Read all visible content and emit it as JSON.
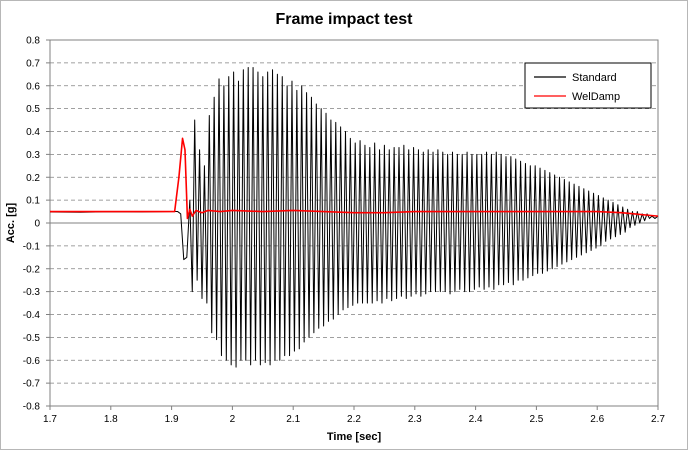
{
  "chart_data": {
    "type": "line",
    "title": "Frame impact test",
    "xlabel": "Time [sec]",
    "ylabel": "Acc. [g]",
    "xlim": [
      1.7,
      2.7
    ],
    "ylim": [
      -0.8,
      0.8
    ],
    "x_ticks": [
      "1.7",
      "1.8",
      "1.9",
      "2",
      "2.1",
      "2.2",
      "2.3",
      "2.4",
      "2.5",
      "2.6",
      "2.7"
    ],
    "y_ticks": [
      "0.8",
      "0.7",
      "0.6",
      "0.5",
      "0.4",
      "0.3",
      "0.2",
      "0.1",
      "0",
      "-0.1",
      "-0.2",
      "-0.3",
      "-0.4",
      "-0.5",
      "-0.6",
      "-0.7",
      "-0.8"
    ],
    "grid": "horizontal dashed",
    "legend_position": "top-right",
    "series": [
      {
        "name": "Standard",
        "color": "#000000",
        "points": [
          [
            1.7,
            0.048
          ],
          [
            1.75,
            0.047
          ],
          [
            1.8,
            0.049
          ],
          [
            1.85,
            0.048
          ],
          [
            1.9,
            0.05
          ],
          [
            1.91,
            0.05
          ],
          [
            1.915,
            0.04
          ],
          [
            1.92,
            -0.16
          ],
          [
            1.925,
            -0.15
          ],
          [
            1.93,
            0.1
          ],
          [
            1.934,
            -0.3
          ],
          [
            1.938,
            0.45
          ],
          [
            1.942,
            -0.25
          ],
          [
            1.946,
            0.32
          ],
          [
            1.95,
            -0.33
          ],
          [
            1.954,
            0.25
          ],
          [
            1.958,
            -0.35
          ],
          [
            1.962,
            0.47
          ],
          [
            1.966,
            -0.48
          ],
          [
            1.97,
            0.55
          ],
          [
            1.974,
            -0.51
          ],
          [
            1.978,
            0.63
          ],
          [
            1.982,
            -0.58
          ],
          [
            1.986,
            0.6
          ],
          [
            1.99,
            -0.6
          ],
          [
            1.994,
            0.64
          ],
          [
            1.998,
            -0.62
          ],
          [
            2.002,
            0.66
          ],
          [
            2.006,
            -0.63
          ],
          [
            2.01,
            0.62
          ],
          [
            2.014,
            -0.6
          ],
          [
            2.018,
            0.67
          ],
          [
            2.022,
            -0.6
          ],
          [
            2.026,
            0.68
          ],
          [
            2.03,
            -0.62
          ],
          [
            2.034,
            0.68
          ],
          [
            2.038,
            -0.6
          ],
          [
            2.042,
            0.66
          ],
          [
            2.046,
            -0.62
          ],
          [
            2.05,
            0.64
          ],
          [
            2.054,
            -0.61
          ],
          [
            2.058,
            0.66
          ],
          [
            2.062,
            -0.62
          ],
          [
            2.066,
            0.67
          ],
          [
            2.07,
            -0.6
          ],
          [
            2.074,
            0.65
          ],
          [
            2.078,
            -0.6
          ],
          [
            2.082,
            0.64
          ],
          [
            2.086,
            -0.58
          ],
          [
            2.09,
            0.6
          ],
          [
            2.094,
            -0.58
          ],
          [
            2.098,
            0.62
          ],
          [
            2.102,
            -0.56
          ],
          [
            2.106,
            0.58
          ],
          [
            2.11,
            -0.55
          ],
          [
            2.114,
            0.6
          ],
          [
            2.118,
            -0.52
          ],
          [
            2.122,
            0.57
          ],
          [
            2.126,
            -0.5
          ],
          [
            2.13,
            0.55
          ],
          [
            2.134,
            -0.48
          ],
          [
            2.138,
            0.52
          ],
          [
            2.142,
            -0.46
          ],
          [
            2.146,
            0.5
          ],
          [
            2.15,
            -0.45
          ],
          [
            2.154,
            0.48
          ],
          [
            2.158,
            -0.43
          ],
          [
            2.162,
            0.45
          ],
          [
            2.166,
            -0.42
          ],
          [
            2.17,
            0.44
          ],
          [
            2.174,
            -0.4
          ],
          [
            2.178,
            0.42
          ],
          [
            2.182,
            -0.38
          ],
          [
            2.186,
            0.4
          ],
          [
            2.19,
            -0.37
          ],
          [
            2.194,
            0.37
          ],
          [
            2.198,
            -0.36
          ],
          [
            2.202,
            0.35
          ],
          [
            2.206,
            -0.35
          ],
          [
            2.21,
            0.36
          ],
          [
            2.214,
            -0.35
          ],
          [
            2.218,
            0.34
          ],
          [
            2.222,
            -0.35
          ],
          [
            2.226,
            0.33
          ],
          [
            2.23,
            -0.35
          ],
          [
            2.234,
            0.35
          ],
          [
            2.238,
            -0.34
          ],
          [
            2.242,
            0.32
          ],
          [
            2.246,
            -0.35
          ],
          [
            2.25,
            0.34
          ],
          [
            2.254,
            -0.33
          ],
          [
            2.258,
            0.32
          ],
          [
            2.262,
            -0.34
          ],
          [
            2.266,
            0.33
          ],
          [
            2.27,
            -0.33
          ],
          [
            2.274,
            0.33
          ],
          [
            2.278,
            -0.32
          ],
          [
            2.282,
            0.34
          ],
          [
            2.286,
            -0.33
          ],
          [
            2.29,
            0.32
          ],
          [
            2.294,
            -0.32
          ],
          [
            2.298,
            0.33
          ],
          [
            2.302,
            -0.31
          ],
          [
            2.306,
            0.32
          ],
          [
            2.31,
            -0.32
          ],
          [
            2.314,
            0.31
          ],
          [
            2.318,
            -0.31
          ],
          [
            2.322,
            0.32
          ],
          [
            2.326,
            -0.3
          ],
          [
            2.33,
            0.31
          ],
          [
            2.334,
            -0.3
          ],
          [
            2.338,
            0.32
          ],
          [
            2.342,
            -0.3
          ],
          [
            2.346,
            0.31
          ],
          [
            2.35,
            -0.3
          ],
          [
            2.354,
            0.3
          ],
          [
            2.358,
            -0.31
          ],
          [
            2.362,
            0.31
          ],
          [
            2.366,
            -0.3
          ],
          [
            2.37,
            0.3
          ],
          [
            2.374,
            -0.29
          ],
          [
            2.378,
            0.3
          ],
          [
            2.382,
            -0.3
          ],
          [
            2.386,
            0.31
          ],
          [
            2.39,
            -0.3
          ],
          [
            2.394,
            0.3
          ],
          [
            2.398,
            -0.29
          ],
          [
            2.402,
            0.3
          ],
          [
            2.406,
            -0.28
          ],
          [
            2.41,
            0.3
          ],
          [
            2.414,
            -0.29
          ],
          [
            2.418,
            0.31
          ],
          [
            2.422,
            -0.28
          ],
          [
            2.426,
            0.3
          ],
          [
            2.43,
            -0.29
          ],
          [
            2.434,
            0.31
          ],
          [
            2.438,
            -0.27
          ],
          [
            2.442,
            0.3
          ],
          [
            2.446,
            -0.27
          ],
          [
            2.45,
            0.29
          ],
          [
            2.454,
            -0.26
          ],
          [
            2.458,
            0.29
          ],
          [
            2.462,
            -0.27
          ],
          [
            2.466,
            0.28
          ],
          [
            2.47,
            -0.25
          ],
          [
            2.474,
            0.27
          ],
          [
            2.478,
            -0.25
          ],
          [
            2.482,
            0.26
          ],
          [
            2.486,
            -0.24
          ],
          [
            2.49,
            0.25
          ],
          [
            2.494,
            -0.23
          ],
          [
            2.498,
            0.25
          ],
          [
            2.502,
            -0.22
          ],
          [
            2.506,
            0.24
          ],
          [
            2.51,
            -0.22
          ],
          [
            2.514,
            0.23
          ],
          [
            2.518,
            -0.21
          ],
          [
            2.522,
            0.22
          ],
          [
            2.526,
            -0.2
          ],
          [
            2.53,
            0.21
          ],
          [
            2.534,
            -0.19
          ],
          [
            2.538,
            0.2
          ],
          [
            2.542,
            -0.18
          ],
          [
            2.546,
            0.19
          ],
          [
            2.55,
            -0.17
          ],
          [
            2.554,
            0.18
          ],
          [
            2.558,
            -0.16
          ],
          [
            2.562,
            0.17
          ],
          [
            2.566,
            -0.15
          ],
          [
            2.57,
            0.16
          ],
          [
            2.574,
            -0.14
          ],
          [
            2.578,
            0.15
          ],
          [
            2.582,
            -0.13
          ],
          [
            2.586,
            0.14
          ],
          [
            2.59,
            -0.12
          ],
          [
            2.594,
            0.13
          ],
          [
            2.598,
            -0.11
          ],
          [
            2.602,
            0.12
          ],
          [
            2.606,
            -0.1
          ],
          [
            2.61,
            0.11
          ],
          [
            2.614,
            -0.08
          ],
          [
            2.618,
            0.1
          ],
          [
            2.622,
            -0.07
          ],
          [
            2.626,
            0.09
          ],
          [
            2.63,
            -0.06
          ],
          [
            2.634,
            0.08
          ],
          [
            2.638,
            -0.05
          ],
          [
            2.642,
            0.07
          ],
          [
            2.646,
            -0.04
          ],
          [
            2.65,
            0.06
          ],
          [
            2.654,
            -0.02
          ],
          [
            2.658,
            0.05
          ],
          [
            2.662,
            -0.01
          ],
          [
            2.666,
            0.05
          ],
          [
            2.67,
            0.0
          ],
          [
            2.674,
            0.04
          ],
          [
            2.678,
            0.01
          ],
          [
            2.682,
            0.04
          ],
          [
            2.686,
            0.02
          ],
          [
            2.69,
            0.03
          ],
          [
            2.695,
            0.02
          ],
          [
            2.7,
            0.03
          ]
        ]
      },
      {
        "name": "WelDamp",
        "color": "#ff0000",
        "points": [
          [
            1.7,
            0.05
          ],
          [
            1.8,
            0.05
          ],
          [
            1.88,
            0.05
          ],
          [
            1.905,
            0.05
          ],
          [
            1.912,
            0.2
          ],
          [
            1.918,
            0.37
          ],
          [
            1.922,
            0.32
          ],
          [
            1.926,
            0.02
          ],
          [
            1.93,
            0.06
          ],
          [
            1.934,
            0.03
          ],
          [
            1.94,
            0.055
          ],
          [
            1.95,
            0.045
          ],
          [
            1.96,
            0.055
          ],
          [
            1.98,
            0.05
          ],
          [
            2.0,
            0.055
          ],
          [
            2.05,
            0.05
          ],
          [
            2.1,
            0.055
          ],
          [
            2.15,
            0.05
          ],
          [
            2.2,
            0.045
          ],
          [
            2.25,
            0.045
          ],
          [
            2.3,
            0.05
          ],
          [
            2.35,
            0.05
          ],
          [
            2.4,
            0.05
          ],
          [
            2.45,
            0.05
          ],
          [
            2.5,
            0.05
          ],
          [
            2.55,
            0.05
          ],
          [
            2.6,
            0.05
          ],
          [
            2.64,
            0.045
          ],
          [
            2.66,
            0.04
          ],
          [
            2.68,
            0.035
          ],
          [
            2.7,
            0.03
          ]
        ]
      }
    ]
  }
}
